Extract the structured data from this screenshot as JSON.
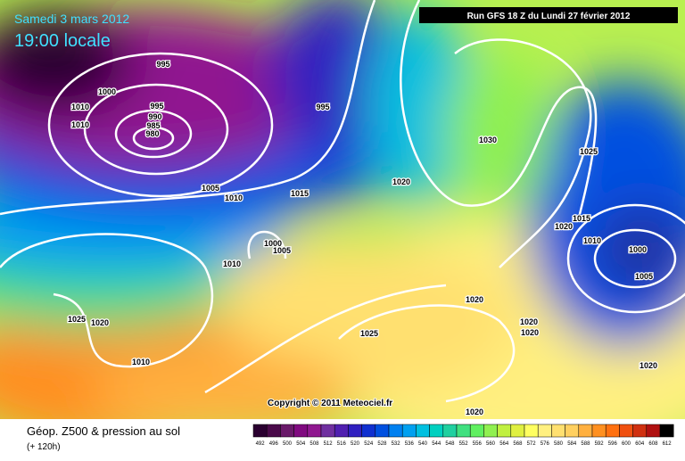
{
  "header": {
    "date": "Samedi 3 mars 2012",
    "time": "19:00 locale",
    "run": "Run GFS 18 Z du Lundi 27 février 2012"
  },
  "isobar_labels": [
    "995",
    "1000",
    "1010",
    "1010",
    "995",
    "990",
    "985",
    "980",
    "995",
    "1005",
    "1010",
    "1015",
    "1020",
    "1030",
    "1025",
    "1015",
    "1020",
    "1010",
    "1000",
    "1005",
    "1000",
    "1005",
    "1010",
    "1025",
    "1020",
    "1010",
    "1025",
    "1020",
    "1020",
    "1020",
    "1020",
    "1020"
  ],
  "copyright": "Copyright © 2011 Meteociel.fr",
  "footer": {
    "title": "Géop. Z500 & pression au sol",
    "lead": "(+ 120h)"
  },
  "legend": {
    "labels": [
      "492",
      "496",
      "500",
      "504",
      "508",
      "512",
      "516",
      "520",
      "524",
      "528",
      "532",
      "536",
      "540",
      "544",
      "548",
      "552",
      "556",
      "560",
      "564",
      "568",
      "572",
      "576",
      "580",
      "584",
      "588",
      "592",
      "596",
      "600",
      "604",
      "608",
      "612"
    ],
    "colors": [
      "#2a0030",
      "#4a0a4a",
      "#6a1a6a",
      "#800a80",
      "#901890",
      "#7030a0",
      "#5020b0",
      "#3020c0",
      "#1030d0",
      "#0050e0",
      "#0080f0",
      "#00a0f0",
      "#00c0e0",
      "#00d0c0",
      "#20d0a0",
      "#40e080",
      "#60f060",
      "#90f050",
      "#c0f040",
      "#e0f040",
      "#ffff60",
      "#fff080",
      "#ffe070",
      "#ffd060",
      "#ffb040",
      "#ff9020",
      "#ff7010",
      "#f05010",
      "#d03010",
      "#b01010",
      "#000000"
    ]
  }
}
